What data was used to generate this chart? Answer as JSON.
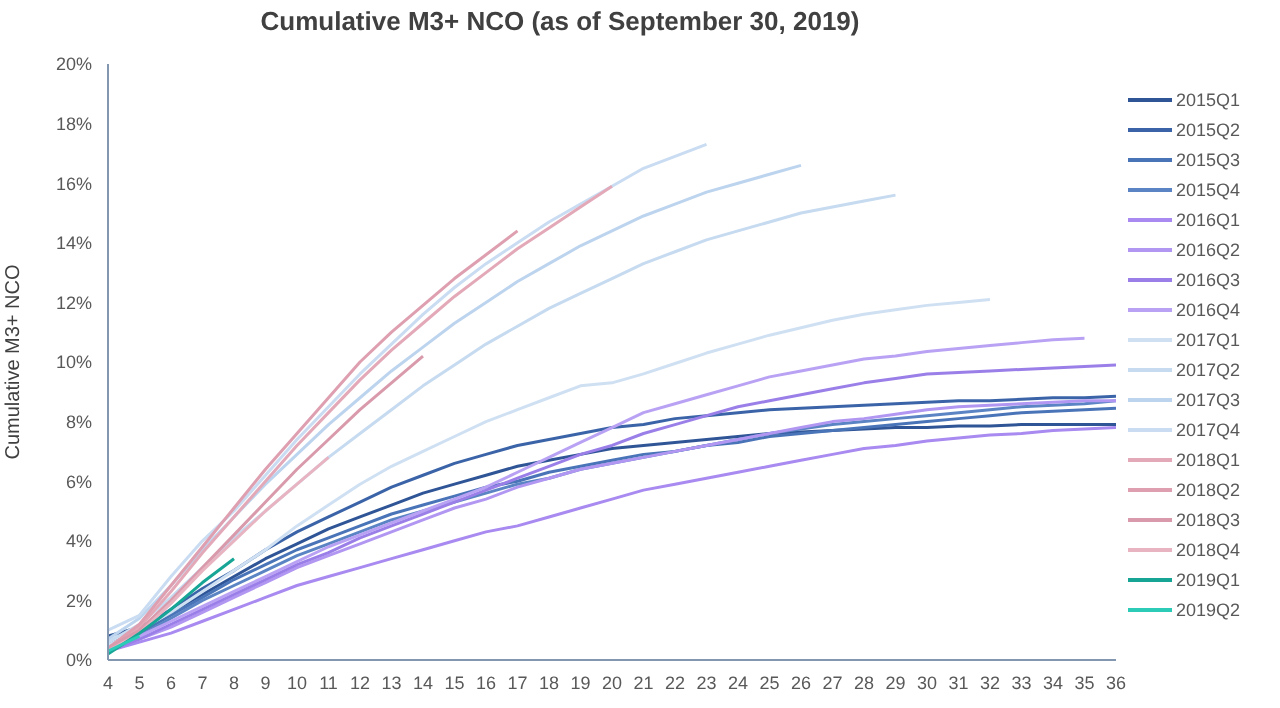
{
  "chart_data": {
    "type": "line",
    "title": "Cumulative M3+ NCO (as of September 30, 2019)",
    "ylabel": "Cumulative M3+ NCO",
    "x": [
      4,
      5,
      6,
      7,
      8,
      9,
      10,
      11,
      12,
      13,
      14,
      15,
      16,
      17,
      18,
      19,
      20,
      21,
      22,
      23,
      24,
      25,
      26,
      27,
      28,
      29,
      30,
      31,
      32,
      33,
      34,
      35,
      36
    ],
    "xlim": [
      4,
      36
    ],
    "xticks": [
      4,
      5,
      6,
      7,
      8,
      9,
      10,
      11,
      12,
      13,
      14,
      15,
      16,
      17,
      18,
      19,
      20,
      21,
      22,
      23,
      24,
      25,
      26,
      27,
      28,
      29,
      30,
      31,
      32,
      33,
      34,
      35,
      36
    ],
    "ylim": [
      0,
      20
    ],
    "yticks": [
      {
        "value": 0,
        "label": "0%"
      },
      {
        "value": 2,
        "label": "2%"
      },
      {
        "value": 4,
        "label": "4%"
      },
      {
        "value": 6,
        "label": "6%"
      },
      {
        "value": 8,
        "label": "8%"
      },
      {
        "value": 10,
        "label": "10%"
      },
      {
        "value": 12,
        "label": "12%"
      },
      {
        "value": 14,
        "label": "14%"
      },
      {
        "value": 16,
        "label": "16%"
      },
      {
        "value": 18,
        "label": "18%"
      },
      {
        "value": 20,
        "label": "20%"
      }
    ],
    "legend": "right",
    "marker": "none",
    "line_style": "solid",
    "series": [
      {
        "name": "2015Q1",
        "color": "#2f5597",
        "values": [
          0.8,
          1.1,
          1.6,
          2.2,
          2.8,
          3.4,
          3.9,
          4.4,
          4.8,
          5.2,
          5.6,
          5.9,
          6.2,
          6.5,
          6.7,
          6.9,
          7.1,
          7.2,
          7.3,
          7.4,
          7.5,
          7.6,
          7.65,
          7.7,
          7.75,
          7.8,
          7.8,
          7.85,
          7.85,
          7.9,
          7.9,
          7.9,
          7.9
        ]
      },
      {
        "name": "2015Q2",
        "color": "#3b64a8",
        "values": [
          0.5,
          1.0,
          1.7,
          2.4,
          3.0,
          3.7,
          4.3,
          4.8,
          5.3,
          5.8,
          6.2,
          6.6,
          6.9,
          7.2,
          7.4,
          7.6,
          7.8,
          7.9,
          8.1,
          8.2,
          8.3,
          8.4,
          8.45,
          8.5,
          8.55,
          8.6,
          8.65,
          8.7,
          8.7,
          8.75,
          8.8,
          8.8,
          8.85
        ]
      },
      {
        "name": "2015Q3",
        "color": "#4a74b8",
        "values": [
          0.4,
          0.9,
          1.5,
          2.1,
          2.7,
          3.2,
          3.7,
          4.1,
          4.5,
          4.9,
          5.2,
          5.5,
          5.8,
          6.0,
          6.3,
          6.5,
          6.7,
          6.9,
          7.0,
          7.2,
          7.3,
          7.5,
          7.6,
          7.7,
          7.8,
          7.9,
          8.0,
          8.1,
          8.2,
          8.3,
          8.35,
          8.4,
          8.45
        ]
      },
      {
        "name": "2015Q4",
        "color": "#5b84c4",
        "values": [
          0.3,
          0.8,
          1.4,
          2.0,
          2.5,
          3.0,
          3.5,
          3.9,
          4.3,
          4.7,
          5.0,
          5.3,
          5.6,
          5.9,
          6.1,
          6.4,
          6.6,
          6.8,
          7.0,
          7.2,
          7.4,
          7.6,
          7.75,
          7.9,
          8.0,
          8.1,
          8.2,
          8.3,
          8.4,
          8.5,
          8.55,
          8.6,
          8.7
        ]
      },
      {
        "name": "2016Q1",
        "color": "#a88af0",
        "values": [
          0.3,
          0.6,
          0.9,
          1.3,
          1.7,
          2.1,
          2.5,
          2.8,
          3.1,
          3.4,
          3.7,
          4.0,
          4.3,
          4.5,
          4.8,
          5.1,
          5.4,
          5.7,
          5.9,
          6.1,
          6.3,
          6.5,
          6.7,
          6.9,
          7.1,
          7.2,
          7.35,
          7.45,
          7.55,
          7.6,
          7.7,
          7.75,
          7.8
        ]
      },
      {
        "name": "2016Q2",
        "color": "#b196f2",
        "values": [
          0.3,
          0.7,
          1.1,
          1.6,
          2.1,
          2.6,
          3.1,
          3.5,
          3.9,
          4.3,
          4.7,
          5.1,
          5.4,
          5.8,
          6.1,
          6.4,
          6.6,
          6.8,
          7.0,
          7.2,
          7.4,
          7.6,
          7.8,
          8.0,
          8.1,
          8.25,
          8.4,
          8.5,
          8.55,
          8.6,
          8.65,
          8.7,
          8.7
        ]
      },
      {
        "name": "2016Q3",
        "color": "#9b7fe8",
        "values": [
          0.3,
          0.7,
          1.2,
          1.7,
          2.2,
          2.7,
          3.2,
          3.6,
          4.1,
          4.5,
          4.9,
          5.3,
          5.7,
          6.1,
          6.5,
          6.9,
          7.2,
          7.6,
          7.9,
          8.2,
          8.5,
          8.7,
          8.9,
          9.1,
          9.3,
          9.45,
          9.6,
          9.65,
          9.7,
          9.75,
          9.8,
          9.85,
          9.9
        ]
      },
      {
        "name": "2016Q4",
        "color": "#b9a2f4",
        "values": [
          0.4,
          0.8,
          1.3,
          1.8,
          2.3,
          2.8,
          3.3,
          3.8,
          4.2,
          4.6,
          5.0,
          5.4,
          5.8,
          6.3,
          6.8,
          7.3,
          7.8,
          8.3,
          8.6,
          8.9,
          9.2,
          9.5,
          9.7,
          9.9,
          10.1,
          10.2,
          10.35,
          10.45,
          10.55,
          10.65,
          10.75,
          10.8,
          null
        ]
      },
      {
        "name": "2017Q1",
        "color": "#cfe0f3",
        "values": [
          0.5,
          1.0,
          1.6,
          2.3,
          3.0,
          3.7,
          4.5,
          5.2,
          5.9,
          6.5,
          7.0,
          7.5,
          8.0,
          8.4,
          8.8,
          9.2,
          9.3,
          9.6,
          9.95,
          10.3,
          10.6,
          10.9,
          11.15,
          11.4,
          11.6,
          11.75,
          11.9,
          12.0,
          12.1,
          null,
          null,
          null,
          null
        ]
      },
      {
        "name": "2017Q2",
        "color": "#c6daf0",
        "values": [
          0.6,
          1.2,
          2.1,
          3.1,
          4.1,
          5.0,
          5.9,
          6.8,
          7.6,
          8.4,
          9.2,
          9.9,
          10.6,
          11.2,
          11.8,
          12.3,
          12.8,
          13.3,
          13.7,
          14.1,
          14.4,
          14.7,
          15.0,
          15.2,
          15.4,
          15.6,
          null,
          null,
          null,
          null,
          null,
          null,
          null
        ]
      },
      {
        "name": "2017Q3",
        "color": "#bdd4ee",
        "values": [
          0.7,
          1.4,
          2.5,
          3.7,
          4.8,
          5.9,
          6.9,
          7.9,
          8.8,
          9.7,
          10.5,
          11.3,
          12.0,
          12.7,
          13.3,
          13.9,
          14.4,
          14.9,
          15.3,
          15.7,
          16.0,
          16.3,
          16.6,
          null,
          null,
          null,
          null,
          null,
          null,
          null,
          null,
          null,
          null
        ]
      },
      {
        "name": "2017Q4",
        "color": "#c9dcf2",
        "values": [
          1.0,
          1.5,
          2.8,
          4.0,
          5.0,
          6.2,
          7.4,
          8.5,
          9.6,
          10.6,
          11.6,
          12.5,
          13.3,
          14.0,
          14.7,
          15.3,
          15.9,
          16.5,
          16.9,
          17.3,
          null,
          null,
          null,
          null,
          null,
          null,
          null,
          null,
          null,
          null,
          null,
          null,
          null
        ]
      },
      {
        "name": "2018Q1",
        "color": "#e3a9b8",
        "values": [
          0.4,
          1.1,
          2.3,
          3.6,
          4.8,
          6.0,
          7.2,
          8.3,
          9.4,
          10.4,
          11.3,
          12.2,
          13.0,
          13.8,
          14.5,
          15.2,
          15.9,
          null,
          null,
          null,
          null,
          null,
          null,
          null,
          null,
          null,
          null,
          null,
          null,
          null,
          null,
          null,
          null
        ]
      },
      {
        "name": "2018Q2",
        "color": "#de9fb0",
        "values": [
          0.4,
          1.2,
          2.5,
          3.8,
          5.1,
          6.4,
          7.6,
          8.8,
          10.0,
          11.0,
          11.9,
          12.8,
          13.6,
          14.4,
          null,
          null,
          null,
          null,
          null,
          null,
          null,
          null,
          null,
          null,
          null,
          null,
          null,
          null,
          null,
          null,
          null,
          null,
          null
        ]
      },
      {
        "name": "2018Q3",
        "color": "#d99aac",
        "values": [
          0.4,
          1.0,
          2.0,
          3.1,
          4.2,
          5.3,
          6.4,
          7.4,
          8.4,
          9.3,
          10.2,
          null,
          null,
          null,
          null,
          null,
          null,
          null,
          null,
          null,
          null,
          null,
          null,
          null,
          null,
          null,
          null,
          null,
          null,
          null,
          null,
          null,
          null
        ]
      },
      {
        "name": "2018Q4",
        "color": "#e8b4c2",
        "values": [
          0.3,
          0.9,
          1.9,
          3.0,
          4.0,
          5.0,
          5.9,
          6.8,
          null,
          null,
          null,
          null,
          null,
          null,
          null,
          null,
          null,
          null,
          null,
          null,
          null,
          null,
          null,
          null,
          null,
          null,
          null,
          null,
          null,
          null,
          null,
          null,
          null
        ]
      },
      {
        "name": "2019Q1",
        "color": "#17a596",
        "values": [
          0.2,
          0.9,
          1.7,
          2.6,
          3.4,
          null,
          null,
          null,
          null,
          null,
          null,
          null,
          null,
          null,
          null,
          null,
          null,
          null,
          null,
          null,
          null,
          null,
          null,
          null,
          null,
          null,
          null,
          null,
          null,
          null,
          null,
          null,
          null
        ]
      },
      {
        "name": "2019Q2",
        "color": "#2ccbb8",
        "values": [
          0.3,
          0.8,
          null,
          null,
          null,
          null,
          null,
          null,
          null,
          null,
          null,
          null,
          null,
          null,
          null,
          null,
          null,
          null,
          null,
          null,
          null,
          null,
          null,
          null,
          null,
          null,
          null,
          null,
          null,
          null,
          null,
          null,
          null
        ]
      }
    ]
  }
}
